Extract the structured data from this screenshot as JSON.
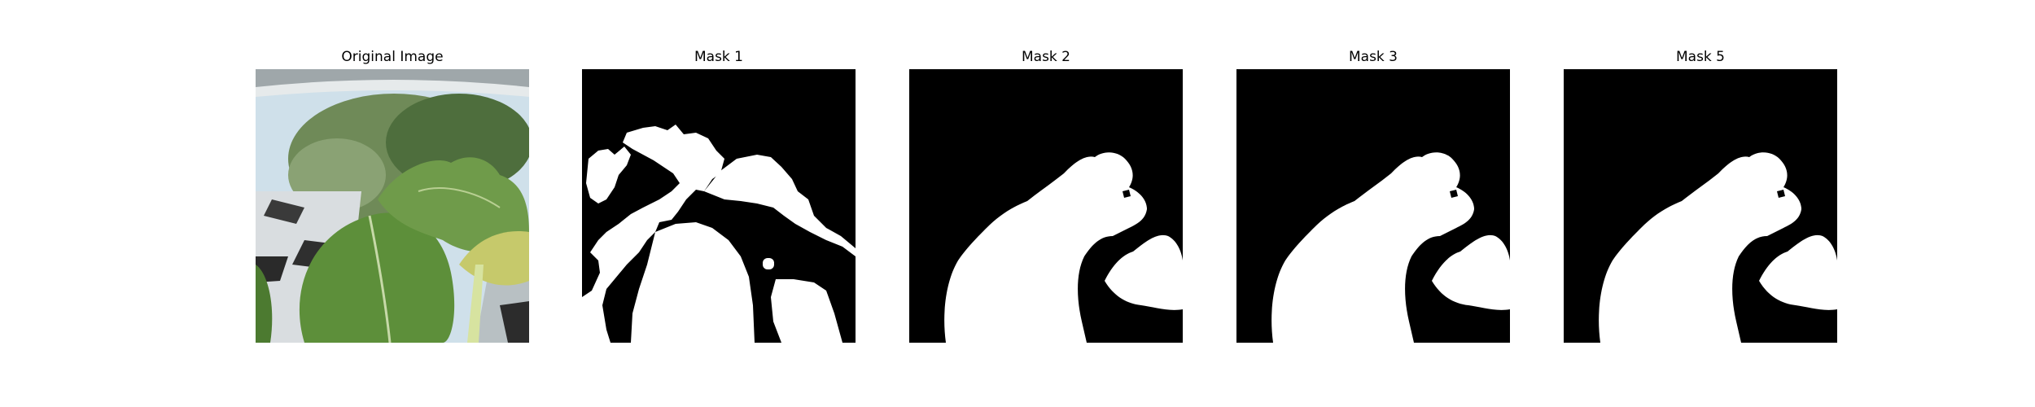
{
  "panels": [
    {
      "title": "Original Image",
      "kind": "photo"
    },
    {
      "title": "Mask 1",
      "kind": "mask"
    },
    {
      "title": "Mask 2",
      "kind": "mask"
    },
    {
      "title": "Mask 3",
      "kind": "mask"
    },
    {
      "title": "Mask 5",
      "kind": "mask"
    }
  ],
  "colors": {
    "mask_background": "#000000",
    "mask_foreground": "#ffffff",
    "leaf_green": "#5a8a3c",
    "sky": "#cfe0ea"
  }
}
